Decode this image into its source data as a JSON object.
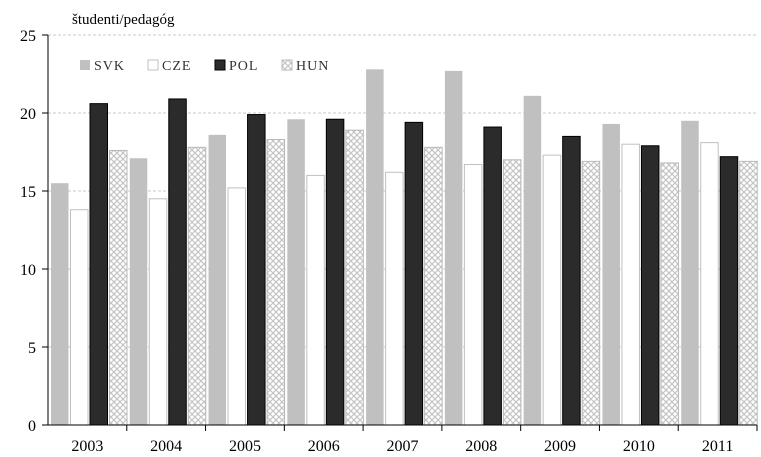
{
  "chart_data": {
    "type": "bar",
    "unit_label": "študenti/pedagóg",
    "categories": [
      "2003",
      "2004",
      "2005",
      "2006",
      "2007",
      "2008",
      "2009",
      "2010",
      "2011"
    ],
    "series": [
      {
        "name": "SVK",
        "values": [
          15.5,
          17.1,
          18.6,
          19.6,
          22.8,
          22.7,
          21.1,
          19.3,
          19.5
        ],
        "fill": "#c0c0c0",
        "stroke": "none"
      },
      {
        "name": "CZE",
        "values": [
          13.8,
          14.5,
          15.2,
          16.0,
          16.2,
          16.7,
          17.3,
          18.0,
          18.1
        ],
        "fill": "#ffffff",
        "stroke": "#c0c0c0"
      },
      {
        "name": "POL",
        "values": [
          20.6,
          20.9,
          19.9,
          19.6,
          19.4,
          19.1,
          18.5,
          17.9,
          17.2
        ],
        "fill": "#2b2b2b",
        "stroke": "#000000"
      },
      {
        "name": "HUN",
        "values": [
          17.6,
          17.8,
          18.3,
          18.9,
          17.8,
          17.0,
          16.9,
          16.8,
          16.9
        ],
        "fill": "pattern",
        "stroke": "#b8b8b8"
      }
    ],
    "ylim": [
      0,
      25
    ],
    "yticks": [
      "0",
      "5",
      "10",
      "15",
      "20",
      "25"
    ],
    "grid": "horizontal-dashed",
    "legend_position": "top-left"
  }
}
